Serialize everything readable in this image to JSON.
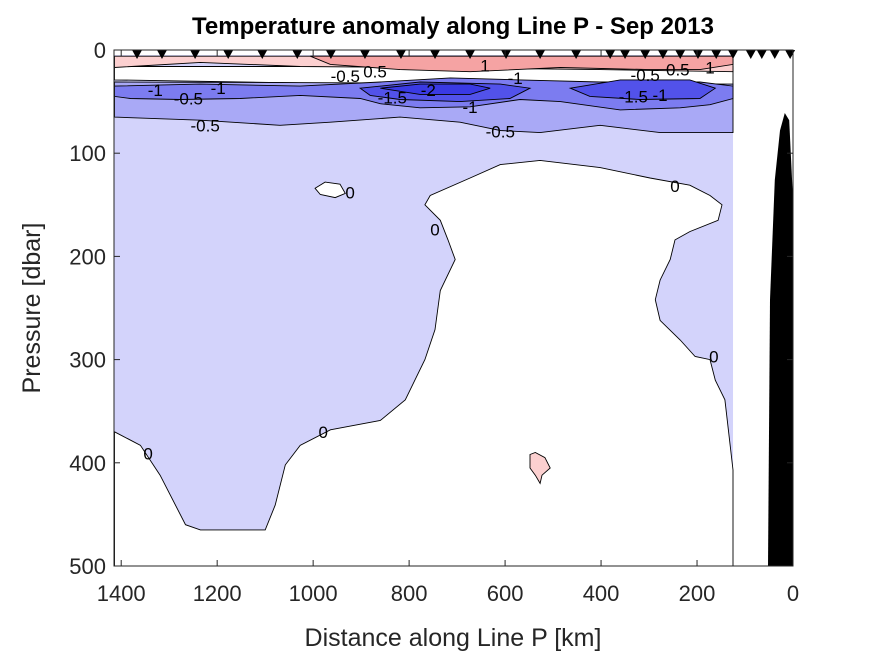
{
  "chart_data": {
    "type": "contour",
    "title": "Temperature anomaly along Line P - Sep 2013",
    "xlabel": "Distance along Line P [km]",
    "ylabel": "Pressure [dbar]",
    "xlim": [
      1415,
      0
    ],
    "ylim": [
      0,
      500
    ],
    "x_reversed": true,
    "y_reversed": true,
    "xticks": [
      "1400",
      "1200",
      "1000",
      "800",
      "600",
      "400",
      "200",
      "0"
    ],
    "xtick_values": [
      1400,
      1200,
      1000,
      800,
      600,
      400,
      200,
      0
    ],
    "yticks": [
      "0",
      "100",
      "200",
      "300",
      "400",
      "500"
    ],
    "ytick_values": [
      0,
      100,
      200,
      300,
      400,
      500
    ],
    "data_extent_km": [
      125,
      1414
    ],
    "data_extent_dbar": [
      5,
      500
    ],
    "base_level_color": "#d3d3fb",
    "contour_regions": [
      {
        "level": "0 to 0.5",
        "color": "#ffffff",
        "points": [
          [
            1414,
            370
          ],
          [
            1360,
            383
          ],
          [
            1319,
            412
          ],
          [
            1266,
            460
          ],
          [
            1235,
            465
          ],
          [
            1100,
            465
          ],
          [
            1079,
            441
          ],
          [
            1058,
            402
          ],
          [
            1027,
            383
          ],
          [
            964,
            368
          ],
          [
            860,
            359
          ],
          [
            808,
            339
          ],
          [
            767,
            300
          ],
          [
            746,
            271
          ],
          [
            735,
            233
          ],
          [
            704,
            203
          ],
          [
            719,
            184
          ],
          [
            735,
            165
          ],
          [
            767,
            150
          ],
          [
            756,
            141
          ],
          [
            673,
            124
          ],
          [
            610,
            111
          ],
          [
            527,
            107
          ],
          [
            402,
            114
          ],
          [
            298,
            124
          ],
          [
            215,
            131
          ],
          [
            173,
            141
          ],
          [
            148,
            150
          ],
          [
            156,
            165
          ],
          [
            215,
            176
          ],
          [
            246,
            184
          ],
          [
            256,
            203
          ],
          [
            277,
            223
          ],
          [
            287,
            242
          ],
          [
            277,
            262
          ],
          [
            235,
            281
          ],
          [
            204,
            297
          ],
          [
            173,
            300
          ],
          [
            162,
            320
          ],
          [
            142,
            339
          ],
          [
            125,
            407
          ],
          [
            125,
            500
          ],
          [
            1414,
            500
          ]
        ]
      },
      {
        "level": "0 to 0.5",
        "color": "#ffffff",
        "points": [
          [
            996,
            134
          ],
          [
            975,
            128
          ],
          [
            944,
            130
          ],
          [
            933,
            139
          ],
          [
            954,
            143
          ],
          [
            985,
            140
          ]
        ]
      },
      {
        "level": "0 to 0.5",
        "color": "#ffffff",
        "points": [
          [
            1414,
            16
          ],
          [
            125,
            16
          ],
          [
            125,
            39
          ],
          [
            1414,
            29
          ]
        ]
      },
      {
        "level": "-1 to -0.5",
        "color": "#a9a9f6",
        "points": [
          [
            1414,
            31
          ],
          [
            125,
            33
          ],
          [
            125,
            80
          ],
          [
            277,
            80
          ],
          [
            402,
            73
          ],
          [
            527,
            80
          ],
          [
            610,
            78
          ],
          [
            694,
            70
          ],
          [
            819,
            65
          ],
          [
            964,
            70
          ],
          [
            1069,
            73
          ],
          [
            1235,
            68
          ],
          [
            1414,
            65
          ]
        ]
      },
      {
        "level": "-1.5 to -1",
        "color": "#7c7cf0",
        "points": [
          [
            1414,
            35
          ],
          [
            1235,
            33
          ],
          [
            1027,
            35
          ],
          [
            860,
            31
          ],
          [
            714,
            27
          ],
          [
            569,
            29
          ],
          [
            402,
            31
          ],
          [
            194,
            31
          ],
          [
            125,
            35
          ],
          [
            125,
            47
          ],
          [
            173,
            53
          ],
          [
            235,
            56
          ],
          [
            360,
            58
          ],
          [
            485,
            50
          ],
          [
            569,
            48
          ],
          [
            673,
            55
          ],
          [
            777,
            56
          ],
          [
            860,
            52
          ],
          [
            902,
            47
          ],
          [
            1027,
            44
          ],
          [
            1152,
            47
          ],
          [
            1277,
            48
          ],
          [
            1381,
            47
          ],
          [
            1414,
            45
          ]
        ]
      },
      {
        "level": "-2 to -1.5",
        "color": "#5252ea",
        "points": [
          [
            902,
            37
          ],
          [
            777,
            31
          ],
          [
            610,
            33
          ],
          [
            548,
            37
          ],
          [
            590,
            47
          ],
          [
            694,
            50
          ],
          [
            819,
            48
          ],
          [
            881,
            44
          ]
        ]
      },
      {
        "level": "-2 to -1.5",
        "color": "#5252ea",
        "points": [
          [
            464,
            37
          ],
          [
            360,
            29
          ],
          [
            215,
            29
          ],
          [
            162,
            37
          ],
          [
            194,
            47
          ],
          [
            319,
            48
          ],
          [
            423,
            45
          ]
        ]
      },
      {
        "level": "below -2",
        "color": "#3a3ae4",
        "points": [
          [
            860,
            37
          ],
          [
            777,
            33
          ],
          [
            673,
            33
          ],
          [
            631,
            37
          ],
          [
            673,
            43
          ],
          [
            777,
            43
          ]
        ]
      },
      {
        "level": "0.5 to 1",
        "color": "#fcd0d0",
        "points": [
          [
            1414,
            6
          ],
          [
            125,
            6
          ],
          [
            125,
            21
          ],
          [
            402,
            19
          ],
          [
            777,
            17
          ],
          [
            1027,
            16
          ],
          [
            1235,
            12
          ],
          [
            1414,
            17
          ]
        ]
      },
      {
        "level": "above 1",
        "color": "#f5a3a3",
        "points": [
          [
            1006,
            6
          ],
          [
            125,
            6
          ],
          [
            125,
            14
          ],
          [
            194,
            19
          ],
          [
            298,
            19
          ],
          [
            485,
            17
          ],
          [
            673,
            21
          ],
          [
            819,
            19
          ],
          [
            964,
            14
          ]
        ]
      },
      {
        "level": "0.5 to 1",
        "color": "#fcd0d0",
        "points": [
          [
            548,
            392
          ],
          [
            537,
            390
          ],
          [
            517,
            395
          ],
          [
            506,
            405
          ],
          [
            523,
            412
          ],
          [
            527,
            420
          ],
          [
            537,
            412
          ],
          [
            548,
            405
          ]
        ]
      }
    ],
    "contour_labels": [
      {
        "text": "-1",
        "km": 1329,
        "dbar": 39
      },
      {
        "text": "-0.5",
        "km": 1260,
        "dbar": 47
      },
      {
        "text": "-1",
        "km": 1198,
        "dbar": 37
      },
      {
        "text": "-0.5",
        "km": 1225,
        "dbar": 73
      },
      {
        "text": "-0.5",
        "km": 933,
        "dbar": 25
      },
      {
        "text": "0.5",
        "km": 871,
        "dbar": 21
      },
      {
        "text": "1",
        "km": 642,
        "dbar": 15
      },
      {
        "text": "-1",
        "km": 579,
        "dbar": 27
      },
      {
        "text": "-1.5",
        "km": 835,
        "dbar": 46
      },
      {
        "text": "-2",
        "km": 760,
        "dbar": 39
      },
      {
        "text": "-1",
        "km": 673,
        "dbar": 55
      },
      {
        "text": "-0.5",
        "km": 610,
        "dbar": 79
      },
      {
        "text": "-0.5",
        "km": 308,
        "dbar": 24
      },
      {
        "text": "0.5",
        "km": 240,
        "dbar": 19
      },
      {
        "text": "1",
        "km": 173,
        "dbar": 17
      },
      {
        "text": "-1",
        "km": 277,
        "dbar": 29
      },
      {
        "text": "-1.5",
        "km": 287,
        "dbar": 45
      },
      {
        "text": "0",
        "km": 923,
        "dbar": 138
      },
      {
        "text": "0",
        "km": 746,
        "dbar": 174
      },
      {
        "text": "0",
        "km": 246,
        "dbar": 132
      },
      {
        "text": "0",
        "km": 979,
        "dbar": 370
      },
      {
        "text": "0",
        "km": 1344,
        "dbar": 391
      },
      {
        "text": "0",
        "km": 165,
        "dbar": 297
      }
    ],
    "stations_km": [
      1367,
      1315,
      1246,
      1177,
      1106,
      1033,
      963,
      892,
      817,
      746,
      673,
      598,
      527,
      452,
      381,
      350,
      308,
      271,
      235,
      198,
      160,
      125,
      88,
      65,
      38,
      6
    ],
    "bathymetry": {
      "color": "#000000",
      "points": [
        [
          52,
          500
        ],
        [
          48,
          242
        ],
        [
          38,
          126
        ],
        [
          27,
          78
        ],
        [
          17,
          61
        ],
        [
          8,
          68
        ],
        [
          0,
          145
        ],
        [
          0,
          500
        ]
      ]
    }
  }
}
